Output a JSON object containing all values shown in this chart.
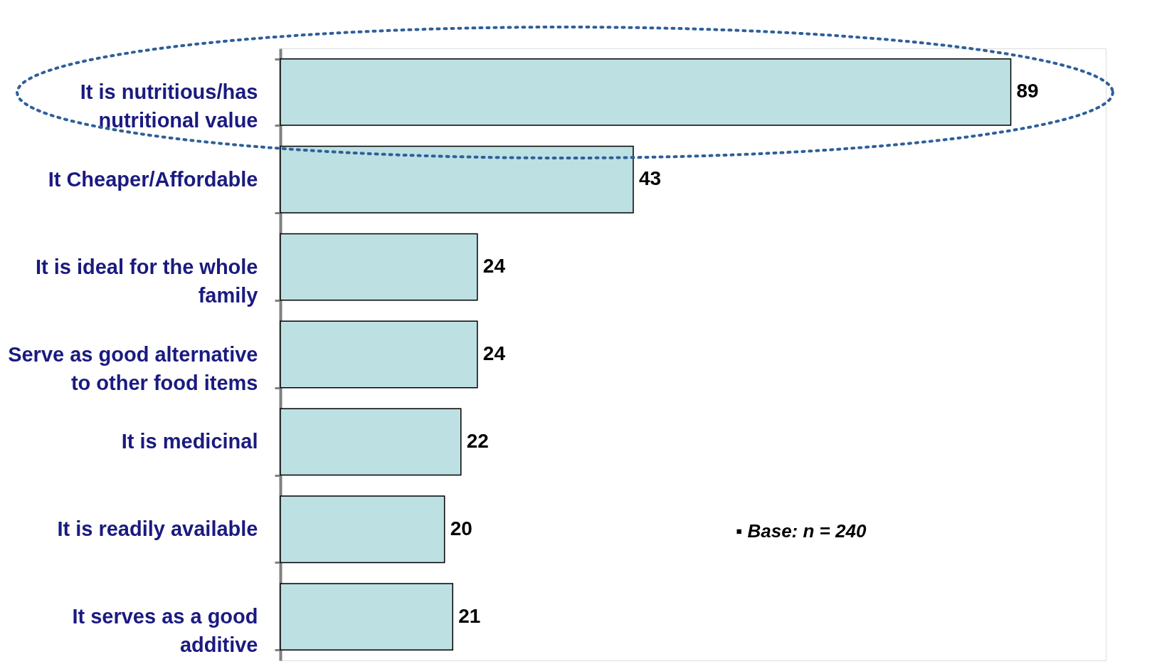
{
  "chart_data": {
    "type": "bar",
    "orientation": "horizontal",
    "data_labels": true,
    "categories": [
      "It is nutritious/has nutritional value",
      "It Cheaper/Affordable",
      "It is ideal for the whole family",
      "Serve as good alternative to other food items",
      "It is medicinal",
      "It is readily available",
      "It serves as a good additive"
    ],
    "values": [
      89,
      43,
      24,
      24,
      22,
      20,
      21
    ],
    "color": "#bde0e3",
    "annotations": [
      "▪ Base: n = 240"
    ]
  }
}
